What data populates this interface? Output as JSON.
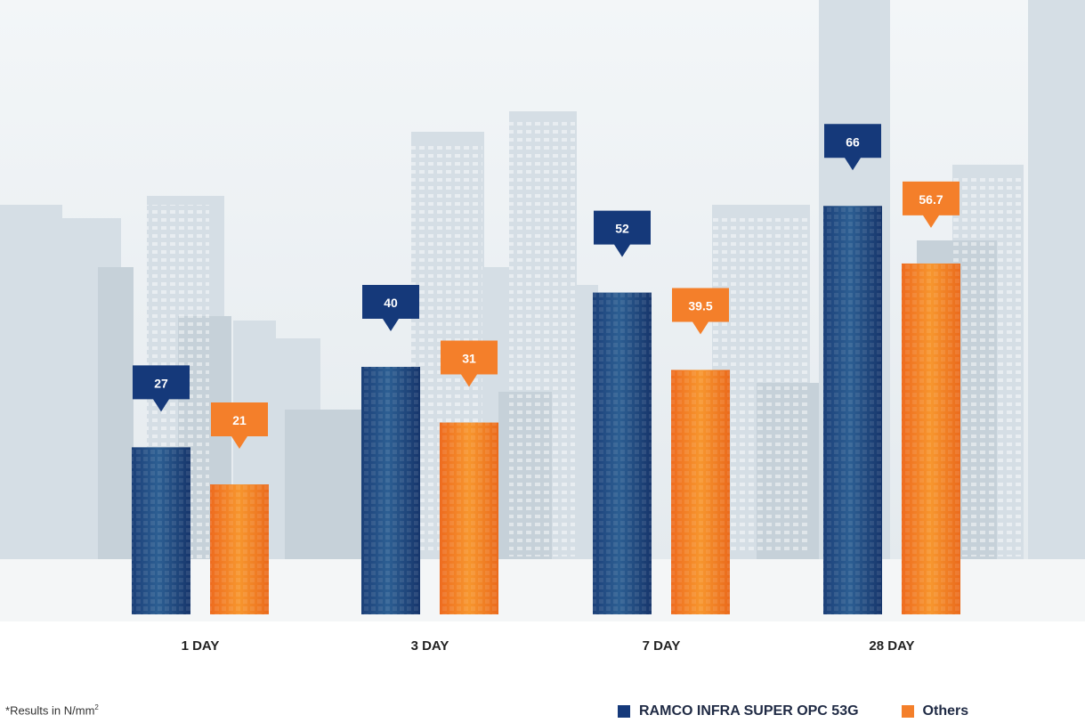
{
  "chart_data": {
    "type": "bar",
    "title": "",
    "xlabel": "",
    "ylabel": "",
    "categories": [
      "1 DAY",
      "3 DAY",
      "7 DAY",
      "28 DAY"
    ],
    "series": [
      {
        "name": "RAMCO INFRA SUPER OPC 53G",
        "color": "#15397a",
        "values": [
          27,
          40,
          52,
          66
        ],
        "labels": [
          "27",
          "40",
          "52",
          "66"
        ]
      },
      {
        "name": "Others",
        "color": "#f47f2a",
        "values": [
          21,
          31,
          39.5,
          56.7
        ],
        "labels": [
          "21",
          "31",
          "39.5",
          "56.7"
        ]
      }
    ],
    "ylim": [
      0,
      70
    ],
    "grid": false,
    "legend": "bottom-right",
    "data_labels": "callout-above-bar"
  },
  "footnote": {
    "asterisk": "*",
    "text": "Results in N/mm",
    "superscript": "2"
  }
}
